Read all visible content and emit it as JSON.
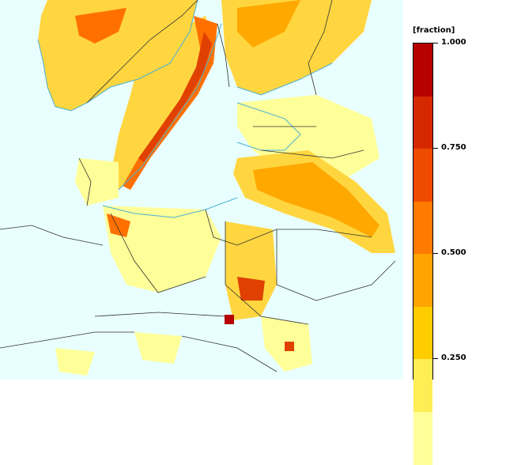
{
  "legend": {
    "title": "[fraction]",
    "ticks": [
      "1.000",
      "0.750",
      "0.500",
      "0.250"
    ],
    "colors": [
      "#b70000",
      "#d62800",
      "#ee4a00",
      "#ff7a00",
      "#ffa400",
      "#ffcc00",
      "#ffed55",
      "#ffff99"
    ]
  },
  "map": {
    "background": "#e9ffff",
    "fill_colors": [
      "#ffff99",
      "#ffd640",
      "#ffa800",
      "#ff7000",
      "#e04000"
    ],
    "coast_color": "#4ab0d4",
    "border_color": "#303030"
  }
}
